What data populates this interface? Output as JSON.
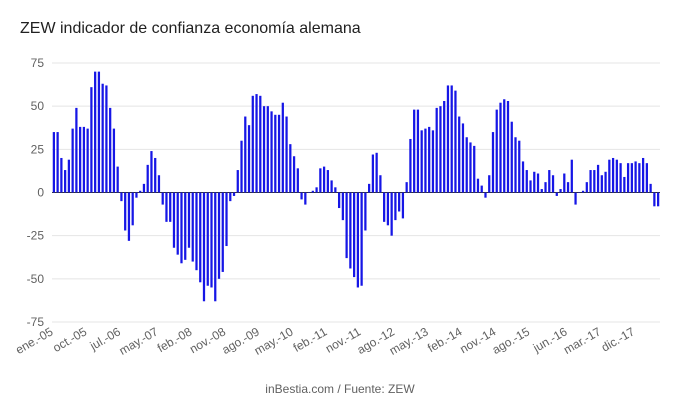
{
  "chart_data": {
    "type": "bar",
    "title": "ZEW indicador de confianza economía alemana",
    "source": "inBestia.com / Fuente: ZEW",
    "xlabel": "",
    "ylabel": "",
    "ylim": [
      -75,
      75
    ],
    "y_ticks": [
      75,
      50,
      25,
      0,
      -25,
      -50,
      -75
    ],
    "x_tick_labels": [
      "ene.-05",
      "oct.-05",
      "jul.-06",
      "may.-07",
      "feb.-08",
      "nov.-08",
      "ago.-09",
      "may.-10",
      "feb.-11",
      "nov.-11",
      "ago.-12",
      "may.-13",
      "feb.-14",
      "nov.-14",
      "ago.-15",
      "jun.-16",
      "mar.-17",
      "dic.-17"
    ],
    "x_tick_indices": [
      0,
      9,
      18,
      28,
      37,
      46,
      55,
      64,
      73,
      82,
      91,
      100,
      109,
      118,
      127,
      137,
      146,
      155
    ],
    "grid": true,
    "legend": "none",
    "bar_color": "#1616e6",
    "values": [
      35,
      35,
      20,
      13,
      19,
      37,
      49,
      38,
      38,
      37,
      61,
      70,
      70,
      63,
      62,
      49,
      37,
      15,
      -5,
      -22,
      -28,
      -19,
      -3,
      1,
      5,
      16,
      24,
      20,
      10,
      -7,
      -17,
      -17,
      -32,
      -36,
      -41,
      -39,
      -32,
      -40,
      -45,
      -52,
      -63,
      -54,
      -55,
      -63,
      -50,
      -46,
      -31,
      -5,
      -2,
      13,
      30,
      44,
      39,
      56,
      57,
      56,
      50,
      50,
      47,
      45,
      45,
      52,
      44,
      28,
      21,
      14,
      -4,
      -7,
      0,
      1,
      3,
      14,
      15,
      13,
      7,
      3,
      -9,
      -16,
      -38,
      -44,
      -49,
      -55,
      -54,
      -22,
      5,
      22,
      23,
      10,
      -17,
      -19,
      -25,
      -16,
      -11,
      -15,
      6,
      31,
      48,
      48,
      36,
      37,
      38,
      36,
      49,
      50,
      53,
      62,
      62,
      59,
      44,
      40,
      32,
      29,
      27,
      8,
      4,
      -3,
      10,
      35,
      48,
      52,
      54,
      53,
      41,
      32,
      30,
      18,
      13,
      7,
      12,
      11,
      2,
      6,
      13,
      10,
      -2,
      2,
      11,
      6,
      19,
      -7,
      0,
      1,
      6,
      13,
      13,
      16,
      10,
      12,
      19,
      20,
      19,
      17,
      9,
      17,
      17,
      18,
      17,
      20,
      17,
      5,
      -8,
      -8
    ]
  }
}
